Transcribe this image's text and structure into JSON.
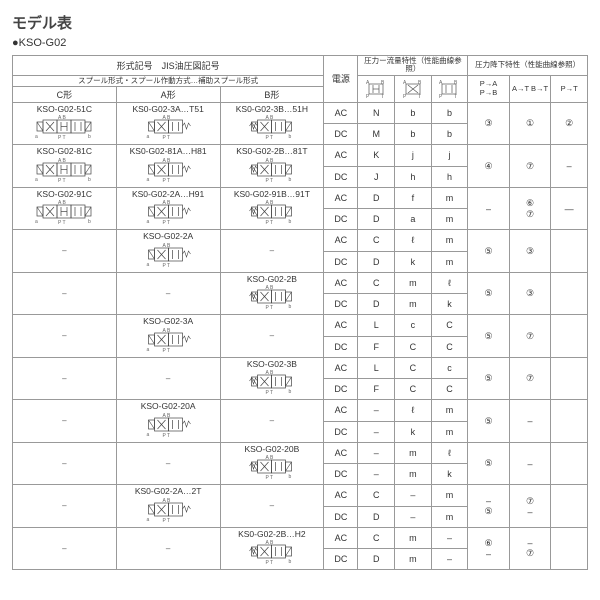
{
  "title": "モデル表",
  "subtitle": "●KSO-G02",
  "headers": {
    "model_group": "形式記号　JIS油圧図記号",
    "spool_row": "スプール形式・スプール作動方式…補助スプール形式",
    "c_form": "C形",
    "a_form": "A形",
    "b_form": "B形",
    "power": "電源",
    "press_flow": "圧力ー流量特性（性能曲線参照）",
    "press_drop": "圧力降下特性（性能曲線参照）",
    "pa_pb": "P→A\nP→B",
    "at_bt": "A→T\nB→T",
    "pt": "P→T"
  },
  "rows": [
    {
      "c": "KSO-G02-51C",
      "a": "KS0-G02-3A…T51",
      "b": "KS0-G02-3B…51H",
      "sub": [
        {
          "pwr": "AC",
          "pf": [
            "N",
            "b",
            "b"
          ],
          "pd": [
            "③",
            "①",
            "②"
          ],
          "pd_span": true
        },
        {
          "pwr": "DC",
          "pf": [
            "M",
            "b",
            "b"
          ]
        }
      ]
    },
    {
      "c": "KSO-G02-81C",
      "a": "KS0-G02-81A…H81",
      "b": "KS0-G02-2B…81T",
      "sub": [
        {
          "pwr": "AC",
          "pf": [
            "K",
            "j",
            "j"
          ],
          "pd": [
            "④",
            "⑦",
            "–"
          ],
          "pd_span": true
        },
        {
          "pwr": "DC",
          "pf": [
            "J",
            "h",
            "h"
          ]
        }
      ]
    },
    {
      "c": "KSO-G02-91C",
      "a": "KS0-G02-2A…H91",
      "b": "KS0-G02-91B…91T",
      "sub": [
        {
          "pwr": "AC",
          "pf": [
            "D",
            "f",
            "m"
          ],
          "pd": [
            "–",
            "⑥\n⑦",
            "—"
          ],
          "pd_span": true
        },
        {
          "pwr": "DC",
          "pf": [
            "D",
            "a",
            "m"
          ]
        }
      ]
    },
    {
      "c": null,
      "a": "KSO-G02-2A",
      "b": null,
      "sub": [
        {
          "pwr": "AC",
          "pf": [
            "C",
            "ℓ",
            "m"
          ],
          "pd": [
            "⑤",
            "③",
            ""
          ],
          "pd_span": true
        },
        {
          "pwr": "DC",
          "pf": [
            "D",
            "k",
            "m"
          ]
        }
      ]
    },
    {
      "c": null,
      "a": null,
      "b": "KSO-G02-2B",
      "sub": [
        {
          "pwr": "AC",
          "pf": [
            "C",
            "m",
            "ℓ"
          ],
          "pd": [
            "⑤",
            "③",
            ""
          ],
          "pd_span": true
        },
        {
          "pwr": "DC",
          "pf": [
            "D",
            "m",
            "k"
          ]
        }
      ]
    },
    {
      "c": null,
      "a": "KSO-G02-3A",
      "b": null,
      "sub": [
        {
          "pwr": "AC",
          "pf": [
            "L",
            "c",
            "C"
          ],
          "pd": [
            "⑤",
            "⑦",
            ""
          ],
          "pd_span": true
        },
        {
          "pwr": "DC",
          "pf": [
            "F",
            "C",
            "C"
          ]
        }
      ]
    },
    {
      "c": null,
      "a": null,
      "b": "KSO-G02-3B",
      "sub": [
        {
          "pwr": "AC",
          "pf": [
            "L",
            "C",
            "c"
          ],
          "pd": [
            "⑤",
            "⑦",
            ""
          ],
          "pd_span": true
        },
        {
          "pwr": "DC",
          "pf": [
            "F",
            "C",
            "C"
          ]
        }
      ]
    },
    {
      "c": null,
      "a": "KSO-G02-20A",
      "b": null,
      "sub": [
        {
          "pwr": "AC",
          "pf": [
            "",
            "ℓ",
            "m"
          ],
          "pd": [
            "⑤",
            "–",
            ""
          ],
          "pd_span": true
        },
        {
          "pwr": "DC",
          "pf": [
            "",
            "k",
            "m"
          ]
        }
      ]
    },
    {
      "c": null,
      "a": null,
      "b": "KSO-G02-20B",
      "sub": [
        {
          "pwr": "AC",
          "pf": [
            "",
            "m",
            "ℓ"
          ],
          "pd": [
            "⑤",
            "–",
            ""
          ],
          "pd_span": true
        },
        {
          "pwr": "DC",
          "pf": [
            "",
            "m",
            "k"
          ]
        }
      ]
    },
    {
      "c": null,
      "a": "KS0-G02-2A…2T",
      "b": null,
      "sub": [
        {
          "pwr": "AC",
          "pf": [
            "C",
            "",
            "m"
          ],
          "pd": [
            "–\n⑤",
            "⑦\n–",
            ""
          ],
          "pd_span": true
        },
        {
          "pwr": "DC",
          "pf": [
            "D",
            "",
            "m"
          ]
        }
      ]
    },
    {
      "c": null,
      "a": null,
      "b": "KS0-G02-2B…H2",
      "sub": [
        {
          "pwr": "AC",
          "pf": [
            "C",
            "m",
            ""
          ],
          "pd": [
            "⑥\n–",
            "–\n⑦",
            ""
          ],
          "pd_span": true,
          "pf2dash": true
        },
        {
          "pwr": "DC",
          "pf": [
            "D",
            "m",
            ""
          ]
        }
      ]
    }
  ]
}
